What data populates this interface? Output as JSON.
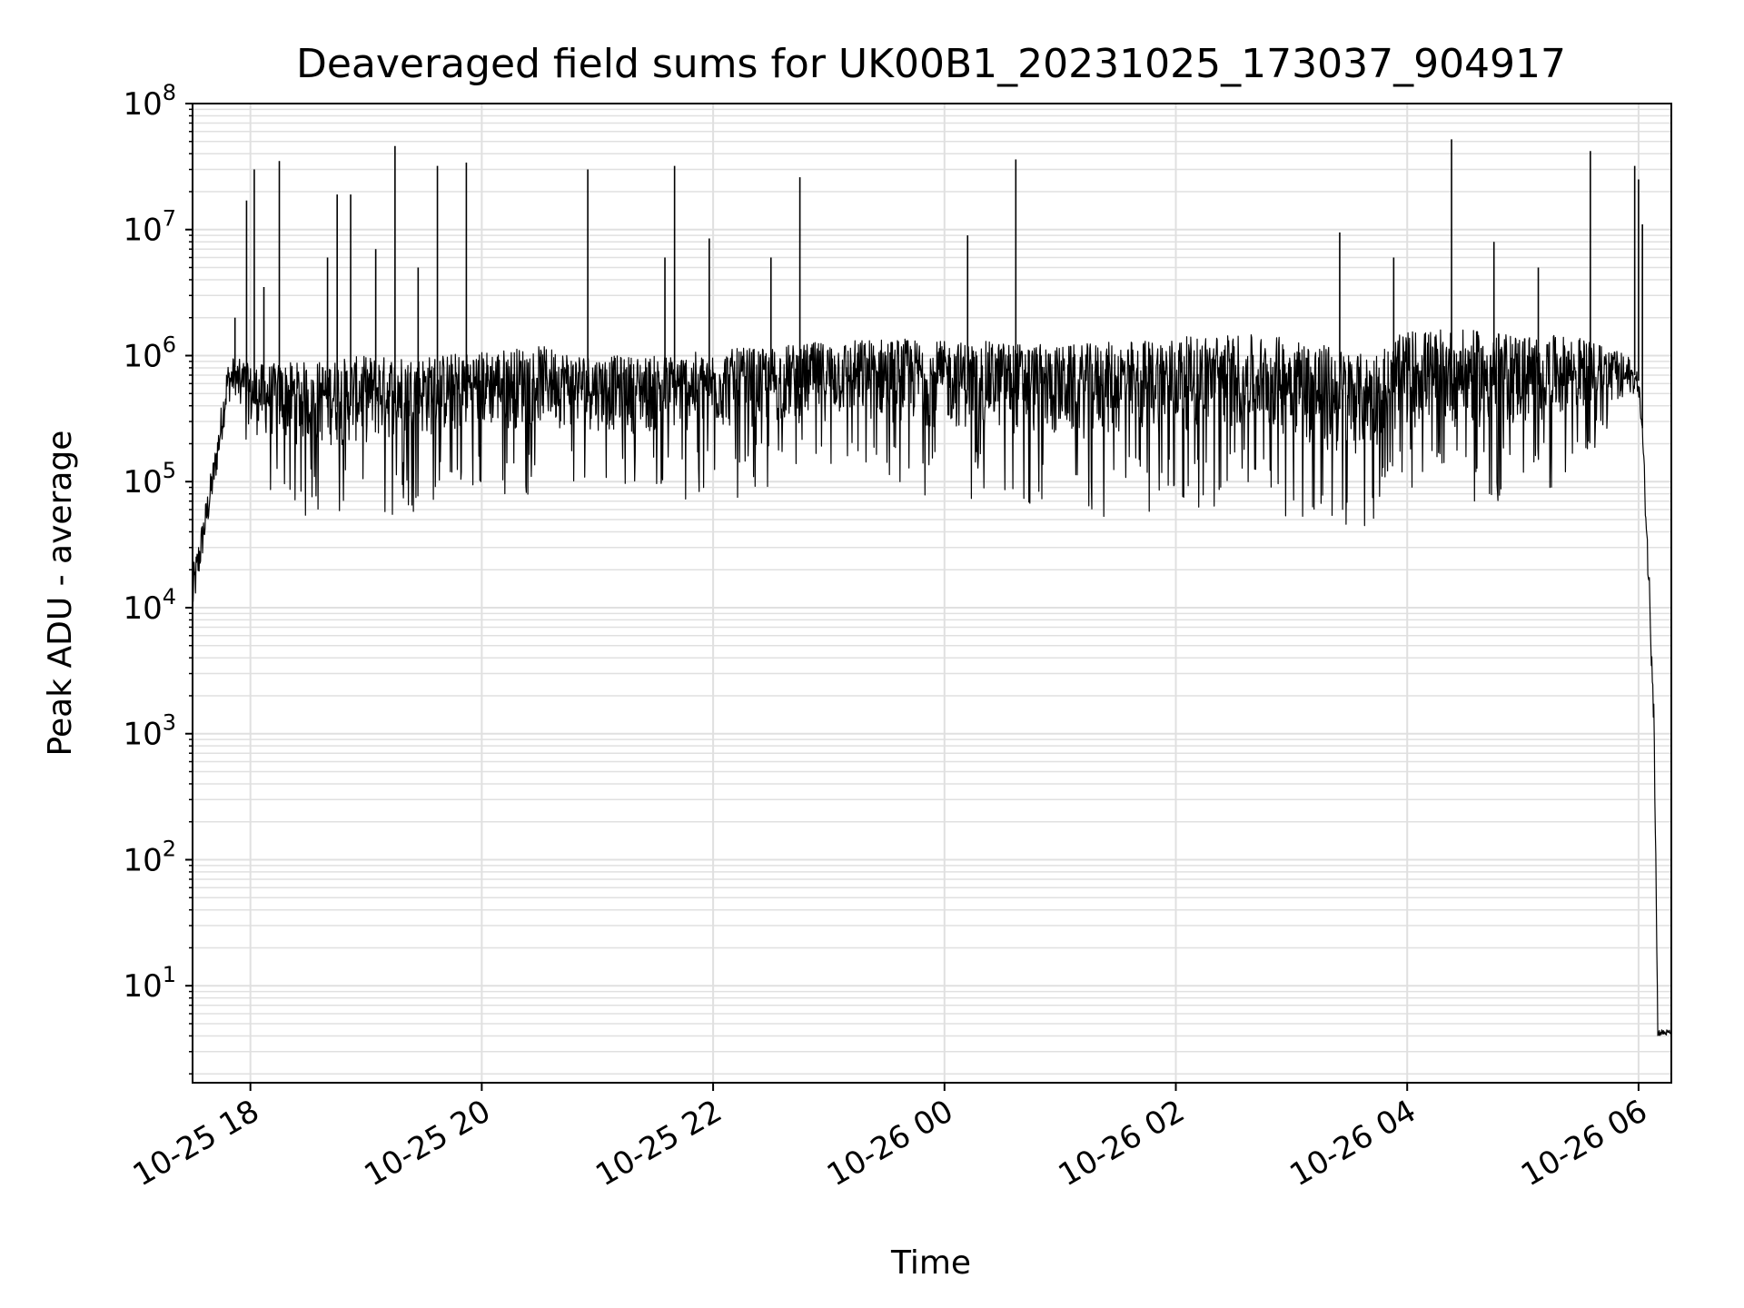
{
  "chart_data": {
    "type": "line",
    "title": "Deaveraged field sums for UK00B1_20231025_173037_904917",
    "xlabel": "Time",
    "ylabel": "Peak ADU - average",
    "yscale": "log",
    "ylim": [
      1.7,
      100000000
    ],
    "xlim": [
      "2023-10-25 17:30",
      "2023-10-26 06:17"
    ],
    "grid": true,
    "line_color": "#000000",
    "grid_color": "#e0e0e0",
    "x_ticks": [
      {
        "t": "2023-10-25 18:00",
        "label": "10-25 18"
      },
      {
        "t": "2023-10-25 20:00",
        "label": "10-25 20"
      },
      {
        "t": "2023-10-25 22:00",
        "label": "10-25 22"
      },
      {
        "t": "2023-10-26 00:00",
        "label": "10-26 00"
      },
      {
        "t": "2023-10-26 02:00",
        "label": "10-26 02"
      },
      {
        "t": "2023-10-26 04:00",
        "label": "10-26 04"
      },
      {
        "t": "2023-10-26 06:00",
        "label": "10-26 06"
      }
    ],
    "y_ticks": [
      {
        "value": 10,
        "base": "10",
        "exp": "1"
      },
      {
        "value": 100,
        "base": "10",
        "exp": "2"
      },
      {
        "value": 1000,
        "base": "10",
        "exp": "3"
      },
      {
        "value": 10000,
        "base": "10",
        "exp": "4"
      },
      {
        "value": 100000,
        "base": "10",
        "exp": "5"
      },
      {
        "value": 1000000,
        "base": "10",
        "exp": "6"
      },
      {
        "value": 10000000,
        "base": "10",
        "exp": "7"
      },
      {
        "value": 100000000,
        "base": "10",
        "exp": "8"
      }
    ],
    "series": [
      {
        "name": "",
        "envelope": [
          {
            "t": "2023-10-25 17:30",
            "high": 20000,
            "low": 8000
          },
          {
            "t": "2023-10-25 17:36",
            "high": 60000,
            "low": 30000
          },
          {
            "t": "2023-10-25 17:42",
            "high": 200000,
            "low": 100000
          },
          {
            "t": "2023-10-25 17:48",
            "high": 900000,
            "low": 400000
          },
          {
            "t": "2023-10-25 17:52",
            "high": 1000000,
            "low": 500000
          },
          {
            "t": "2023-10-25 17:56",
            "high": 900000,
            "low": 300000
          },
          {
            "t": "2023-10-25 18:00",
            "high": 850000,
            "low": 80000
          },
          {
            "t": "2023-10-25 18:30",
            "high": 900000,
            "low": 50000
          },
          {
            "t": "2023-10-25 19:00",
            "high": 1000000,
            "low": 50000
          },
          {
            "t": "2023-10-25 19:30",
            "high": 1000000,
            "low": 60000
          },
          {
            "t": "2023-10-25 20:00",
            "high": 1100000,
            "low": 70000
          },
          {
            "t": "2023-10-25 20:30",
            "high": 1200000,
            "low": 80000
          },
          {
            "t": "2023-10-25 21:00",
            "high": 1000000,
            "low": 80000
          },
          {
            "t": "2023-10-25 21:30",
            "high": 1000000,
            "low": 70000
          },
          {
            "t": "2023-10-25 22:00",
            "high": 1100000,
            "low": 70000
          },
          {
            "t": "2023-10-25 22:30",
            "high": 1200000,
            "low": 80000
          },
          {
            "t": "2023-10-25 23:00",
            "high": 1300000,
            "low": 90000
          },
          {
            "t": "2023-10-25 23:30",
            "high": 1400000,
            "low": 80000
          },
          {
            "t": "2023-10-26 00:00",
            "high": 1300000,
            "low": 70000
          },
          {
            "t": "2023-10-26 00:30",
            "high": 1300000,
            "low": 60000
          },
          {
            "t": "2023-10-26 01:00",
            "high": 1200000,
            "low": 50000
          },
          {
            "t": "2023-10-26 01:30",
            "high": 1300000,
            "low": 50000
          },
          {
            "t": "2023-10-26 02:00",
            "high": 1400000,
            "low": 60000
          },
          {
            "t": "2023-10-26 02:30",
            "high": 1500000,
            "low": 60000
          },
          {
            "t": "2023-10-26 03:00",
            "high": 1400000,
            "low": 50000
          },
          {
            "t": "2023-10-26 03:20",
            "high": 1200000,
            "low": 25000
          },
          {
            "t": "2023-10-26 03:40",
            "high": 1000000,
            "low": 40000
          },
          {
            "t": "2023-10-26 04:00",
            "high": 1600000,
            "low": 60000
          },
          {
            "t": "2023-10-26 04:30",
            "high": 1600000,
            "low": 60000
          },
          {
            "t": "2023-10-26 05:00",
            "high": 1500000,
            "low": 60000
          },
          {
            "t": "2023-10-26 05:30",
            "high": 1400000,
            "low": 100000
          },
          {
            "t": "2023-10-26 05:55",
            "high": 1000000,
            "low": 500000
          },
          {
            "t": "2023-10-26 06:00",
            "high": 700000,
            "low": 500000
          },
          {
            "t": "2023-10-26 06:02",
            "high": 300000,
            "low": 200000
          },
          {
            "t": "2023-10-26 06:05",
            "high": 30000,
            "low": 15000
          },
          {
            "t": "2023-10-26 06:08",
            "high": 3000,
            "low": 1000
          },
          {
            "t": "2023-10-26 06:10",
            "high": 4.5,
            "low": 4
          },
          {
            "t": "2023-10-26 06:17",
            "high": 4.5,
            "low": 4
          }
        ],
        "spikes": [
          {
            "t": "2023-10-25 17:52",
            "value": 2000000
          },
          {
            "t": "2023-10-25 17:58",
            "value": 17000000
          },
          {
            "t": "2023-10-25 18:02",
            "value": 30000000
          },
          {
            "t": "2023-10-25 18:07",
            "value": 3500000
          },
          {
            "t": "2023-10-25 18:15",
            "value": 35000000
          },
          {
            "t": "2023-10-25 18:40",
            "value": 6000000
          },
          {
            "t": "2023-10-25 18:45",
            "value": 19000000
          },
          {
            "t": "2023-10-25 18:52",
            "value": 19000000
          },
          {
            "t": "2023-10-25 19:05",
            "value": 7000000
          },
          {
            "t": "2023-10-25 19:15",
            "value": 46000000
          },
          {
            "t": "2023-10-25 19:27",
            "value": 5000000
          },
          {
            "t": "2023-10-25 19:37",
            "value": 32000000
          },
          {
            "t": "2023-10-25 19:52",
            "value": 34000000
          },
          {
            "t": "2023-10-25 20:55",
            "value": 30000000
          },
          {
            "t": "2023-10-25 21:35",
            "value": 6000000
          },
          {
            "t": "2023-10-25 21:40",
            "value": 32000000
          },
          {
            "t": "2023-10-25 21:58",
            "value": 8500000
          },
          {
            "t": "2023-10-25 22:30",
            "value": 6000000
          },
          {
            "t": "2023-10-25 22:45",
            "value": 26000000
          },
          {
            "t": "2023-10-26 00:12",
            "value": 9000000
          },
          {
            "t": "2023-10-26 00:37",
            "value": 36000000
          },
          {
            "t": "2023-10-26 03:25",
            "value": 9500000
          },
          {
            "t": "2023-10-26 03:53",
            "value": 6000000
          },
          {
            "t": "2023-10-26 04:23",
            "value": 52000000
          },
          {
            "t": "2023-10-26 04:45",
            "value": 8000000
          },
          {
            "t": "2023-10-26 05:08",
            "value": 5000000
          },
          {
            "t": "2023-10-26 05:35",
            "value": 42000000
          },
          {
            "t": "2023-10-26 05:58",
            "value": 32000000
          },
          {
            "t": "2023-10-26 06:00",
            "value": 25000000
          },
          {
            "t": "2023-10-26 06:02",
            "value": 11000000
          }
        ]
      }
    ]
  }
}
